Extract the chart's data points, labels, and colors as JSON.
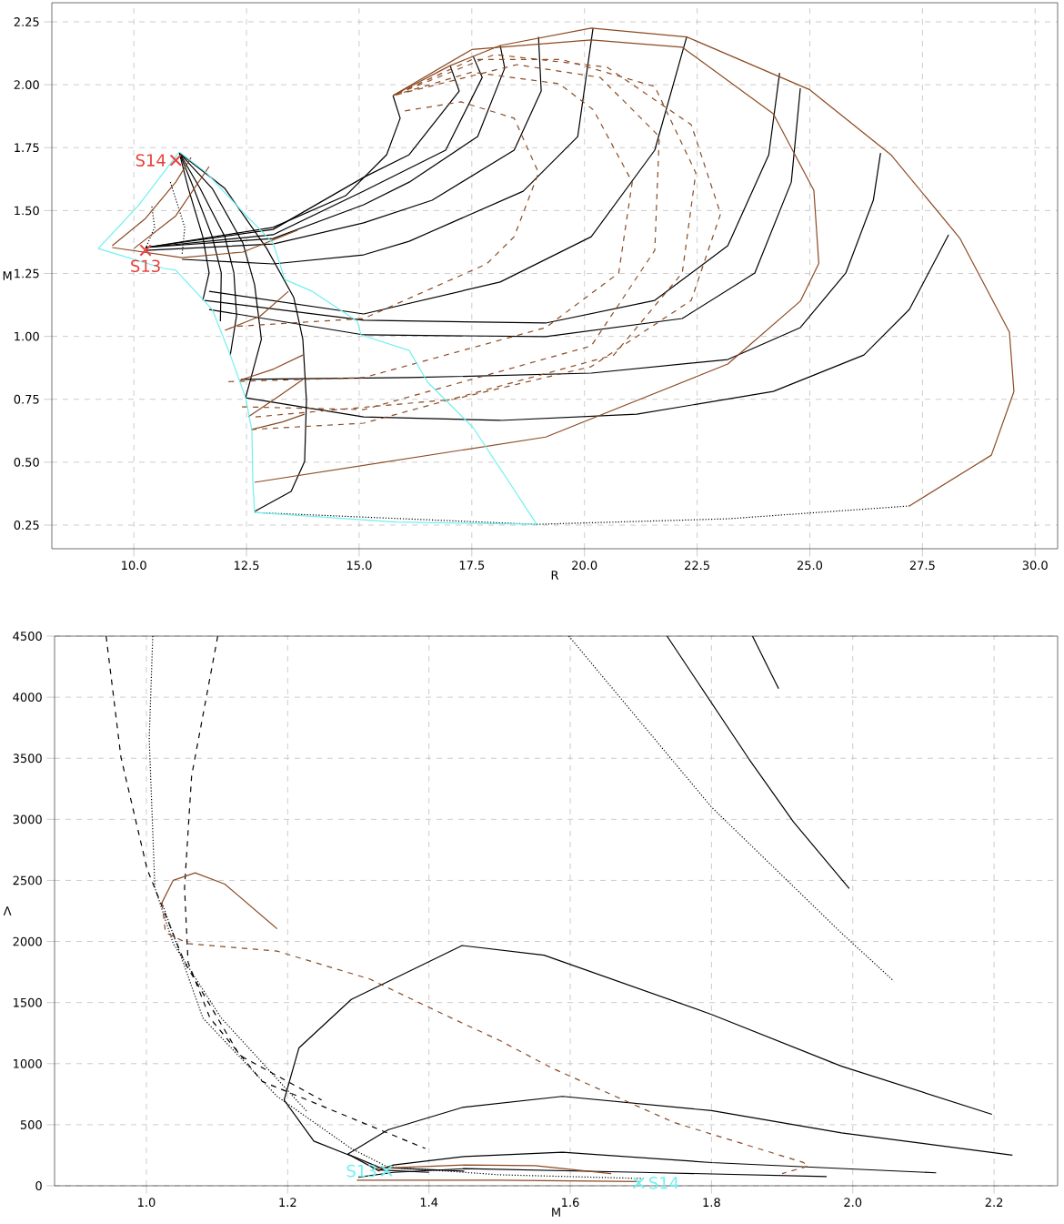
{
  "chart_data": [
    {
      "type": "line",
      "xlabel": "R",
      "ylabel": "M",
      "xlim": [
        8.18,
        30.5
      ],
      "ylim": [
        0.156,
        2.326
      ],
      "grid": true,
      "xticks": [
        {
          "value": 10.0,
          "label": "10.0"
        },
        {
          "value": 12.5,
          "label": "12.5"
        },
        {
          "value": 15.0,
          "label": "15.0"
        },
        {
          "value": 17.5,
          "label": "17.5"
        },
        {
          "value": 20.0,
          "label": "20.0"
        },
        {
          "value": 22.5,
          "label": "22.5"
        },
        {
          "value": 25.0,
          "label": "25.0"
        },
        {
          "value": 27.5,
          "label": "27.5"
        },
        {
          "value": 30.0,
          "label": "30.0"
        }
      ],
      "yticks": [
        {
          "value": 0.25,
          "label": "0.25"
        },
        {
          "value": 0.5,
          "label": "0.50"
        },
        {
          "value": 0.75,
          "label": "0.75"
        },
        {
          "value": 1.0,
          "label": "1.00"
        },
        {
          "value": 1.25,
          "label": "1.25"
        },
        {
          "value": 1.5,
          "label": "1.50"
        },
        {
          "value": 1.75,
          "label": "1.75"
        },
        {
          "value": 2.0,
          "label": "2.00"
        },
        {
          "value": 2.25,
          "label": "2.25"
        }
      ],
      "series": [
        {
          "color": "#000000",
          "line_style": "solid",
          "x": [
            12.48,
            15.1,
            18.13,
            21.16,
            24.19,
            26.2,
            27.21,
            28.08
          ],
          "values": [
            0.756,
            0.68,
            0.666,
            0.691,
            0.781,
            0.926,
            1.107,
            1.404
          ]
        },
        {
          "color": "#000000",
          "line_style": "solid",
          "x": [
            12.38,
            16.11,
            20.15,
            23.18,
            24.79,
            25.8,
            26.41,
            26.57
          ],
          "values": [
            0.829,
            0.836,
            0.854,
            0.908,
            1.035,
            1.252,
            1.541,
            1.729
          ]
        },
        {
          "color": "#000000",
          "line_style": "solid",
          "x": [
            11.67,
            15.1,
            19.14,
            22.17,
            23.78,
            24.59,
            24.79
          ],
          "values": [
            1.107,
            1.006,
            0.999,
            1.071,
            1.252,
            1.613,
            1.986
          ]
        },
        {
          "color": "#000000",
          "line_style": "solid",
          "x": [
            11.57,
            15.1,
            19.14,
            21.56,
            23.18,
            24.09,
            24.33
          ],
          "values": [
            1.143,
            1.064,
            1.053,
            1.143,
            1.36,
            1.722,
            2.047
          ]
        },
        {
          "color": "#000000",
          "line_style": "solid",
          "x": [
            11.67,
            15.1,
            18.13,
            20.15,
            21.56,
            22.27
          ],
          "values": [
            1.179,
            1.089,
            1.216,
            1.396,
            1.74,
            2.192
          ]
        },
        {
          "color": "#000000",
          "line_style": "solid",
          "x": [
            11.07,
            13.09,
            15.1,
            16.11,
            18.64,
            19.85,
            20.19
          ],
          "values": [
            1.306,
            1.288,
            1.324,
            1.378,
            1.577,
            1.794,
            2.225
          ]
        },
        {
          "color": "#000000",
          "line_style": "solid",
          "x": [
            10.26,
            13.09,
            15.1,
            16.62,
            18.44,
            19.04,
            18.98
          ],
          "values": [
            1.342,
            1.367,
            1.451,
            1.541,
            1.74,
            1.975,
            2.19
          ]
        },
        {
          "color": "#000000",
          "line_style": "solid",
          "x": [
            10.26,
            13.09,
            15.1,
            16.11,
            17.63,
            18.23,
            18.13
          ],
          "values": [
            1.353,
            1.389,
            1.523,
            1.613,
            1.794,
            2.066,
            2.156
          ]
        },
        {
          "color": "#000000",
          "line_style": "solid",
          "x": [
            10.26,
            13.09,
            15.1,
            16.92,
            17.73,
            17.53
          ],
          "values": [
            1.353,
            1.404,
            1.577,
            1.74,
            2.029,
            2.113
          ]
        },
        {
          "color": "#000000",
          "line_style": "solid",
          "x": [
            10.26,
            13.09,
            15.1,
            16.11,
            17.22,
            17.02
          ],
          "values": [
            1.353,
            1.425,
            1.632,
            1.722,
            1.975,
            2.076
          ]
        },
        {
          "color": "#000000",
          "line_style": "solid",
          "x": [
            10.26,
            13.09,
            14.7,
            15.61,
            15.91,
            15.75
          ],
          "values": [
            1.353,
            1.433,
            1.559,
            1.722,
            1.867,
            1.957
          ]
        },
        {
          "color": "#000000",
          "line_style": "solid",
          "x": [
            11.01,
            12.02,
            12.95,
            13.55,
            13.75,
            13.83,
            13.79,
            13.49,
            12.68
          ],
          "values": [
            1.729,
            1.588,
            1.349,
            1.154,
            0.988,
            0.745,
            0.503,
            0.384,
            0.304
          ]
        },
        {
          "color": "#000000",
          "line_style": "solid",
          "x": [
            11.01,
            11.74,
            12.42,
            12.68,
            12.83,
            12.48
          ],
          "values": [
            1.729,
            1.588,
            1.371,
            1.205,
            0.988,
            0.756
          ]
        },
        {
          "color": "#000000",
          "line_style": "solid",
          "x": [
            11.01,
            11.47,
            12.02,
            12.22,
            12.28,
            12.14
          ],
          "values": [
            1.729,
            1.588,
            1.396,
            1.252,
            1.082,
            0.926
          ]
        },
        {
          "color": "#000000",
          "line_style": "solid",
          "x": [
            11.01,
            11.33,
            11.74,
            11.94,
            11.92
          ],
          "values": [
            1.729,
            1.588,
            1.396,
            1.252,
            1.06
          ]
        },
        {
          "color": "#000000",
          "line_style": "solid",
          "x": [
            11.01,
            11.21,
            11.53,
            11.67,
            11.53
          ],
          "values": [
            1.729,
            1.588,
            1.396,
            1.252,
            1.143
          ]
        },
        {
          "color": "#000000",
          "line_style": "dotted",
          "x": [
            10.81,
            11.13,
            11.07
          ],
          "values": [
            1.613,
            1.433,
            1.324
          ]
        },
        {
          "color": "#000000",
          "line_style": "dotted",
          "x": [
            10.4,
            10.46,
            10.26
          ],
          "values": [
            1.516,
            1.433,
            1.349
          ]
        },
        {
          "color": "#000000",
          "line_style": "dotted",
          "x": [
            12.68,
            18.94,
            23.18,
            27.21
          ],
          "values": [
            0.3,
            0.253,
            0.275,
            0.326
          ]
        },
        {
          "color": "#8c4a22",
          "line_style": "solid",
          "x": [
            27.21,
            29.03,
            29.53,
            29.43,
            28.33,
            26.81,
            25.0,
            22.27,
            20.15,
            18.13,
            17.02,
            15.75
          ],
          "values": [
            0.326,
            0.528,
            0.781,
            1.017,
            1.39,
            1.72,
            1.98,
            2.19,
            2.225,
            2.156,
            2.076,
            1.957
          ]
        },
        {
          "color": "#8c4a22",
          "line_style": "solid",
          "x": [
            12.68,
            19.14,
            23.18,
            24.79,
            25.2,
            25.09,
            24.19,
            22.17,
            20.15,
            17.5,
            15.75
          ],
          "values": [
            0.42,
            0.6,
            0.89,
            1.14,
            1.29,
            1.58,
            1.885,
            2.149,
            2.178,
            2.14,
            1.957
          ]
        },
        {
          "color": "#8c4a22",
          "line_style": "dashed",
          "x": [
            12.3,
            15.1,
            17.83,
            18.44,
            18.98,
            18.44,
            17.26,
            16.01
          ],
          "values": [
            1.04,
            1.071,
            1.288,
            1.396,
            1.65,
            1.867,
            1.932,
            1.896
          ]
        },
        {
          "color": "#8c4a22",
          "line_style": "dashed",
          "x": [
            12.1,
            15.1,
            19.14,
            20.76,
            21.06,
            20.2,
            19.44,
            17.5,
            15.75
          ],
          "values": [
            0.82,
            0.836,
            1.035,
            1.252,
            1.613,
            1.9,
            2.004,
            2.05,
            1.957
          ]
        },
        {
          "color": "#8c4a22",
          "line_style": "dashed",
          "x": [
            12.4,
            15.1,
            20.15,
            21.56,
            21.66,
            20.35,
            18.5,
            15.75
          ],
          "values": [
            0.72,
            0.709,
            0.962,
            1.342,
            1.794,
            2.029,
            2.08,
            1.957
          ]
        },
        {
          "color": "#8c4a22",
          "line_style": "dashed",
          "x": [
            12.6,
            15.1,
            20.65,
            22.17,
            22.47,
            21.56,
            19.5,
            17.5,
            15.75
          ],
          "values": [
            0.63,
            0.655,
            0.926,
            1.252,
            1.65,
            1.993,
            2.1,
            2.1,
            1.957
          ]
        },
        {
          "color": "#8c4a22",
          "line_style": "dashed",
          "x": [
            12.7,
            17.1,
            20.15,
            22.37,
            23.02,
            22.37,
            20.5,
            18.0,
            15.75
          ],
          "values": [
            0.68,
            0.75,
            0.88,
            1.143,
            1.487,
            1.841,
            2.07,
            2.12,
            1.957
          ]
        },
        {
          "color": "#8c4a22",
          "line_style": "solid",
          "x": [
            12.02,
            12.8,
            13.43
          ],
          "values": [
            1.024,
            1.08,
            1.179
          ]
        },
        {
          "color": "#8c4a22",
          "line_style": "solid",
          "x": [
            12.34,
            13.1,
            13.75
          ],
          "values": [
            0.825,
            0.87,
            0.926
          ]
        },
        {
          "color": "#8c4a22",
          "line_style": "solid",
          "x": [
            12.54,
            13.2,
            13.75
          ],
          "values": [
            0.68,
            0.76,
            0.829
          ]
        },
        {
          "color": "#8c4a22",
          "line_style": "solid",
          "x": [
            12.62,
            13.3,
            13.79
          ],
          "values": [
            0.63,
            0.66,
            0.691
          ]
        },
        {
          "color": "#8c4a22",
          "line_style": "solid",
          "x": [
            9.52,
            11.07,
            12.42,
            13.63
          ],
          "values": [
            1.353,
            1.313,
            1.335,
            1.422
          ]
        },
        {
          "color": "#8c4a22",
          "line_style": "solid",
          "x": [
            9.52,
            10.26,
            10.93,
            11.27
          ],
          "values": [
            1.36,
            1.469,
            1.613,
            1.711
          ]
        },
        {
          "color": "#8c4a22",
          "line_style": "solid",
          "x": [
            10.0,
            10.93,
            11.67
          ],
          "values": [
            1.349,
            1.479,
            1.675
          ]
        },
        {
          "color": "#70f0f0",
          "line_style": "solid",
          "x": [
            9.21,
            10.1,
            11.01
          ],
          "values": [
            1.349,
            1.52,
            1.733
          ]
        },
        {
          "color": "#70f0f0",
          "line_style": "solid",
          "x": [
            11.01,
            11.61,
            12.42,
            13.09,
            13.35,
            13.96,
            14.96,
            15.04,
            16.11,
            16.52,
            17.53,
            18.33,
            18.94
          ],
          "values": [
            1.733,
            1.65,
            1.494,
            1.371,
            1.226,
            1.179,
            1.06,
            1.006,
            0.944,
            0.818,
            0.637,
            0.42,
            0.253
          ]
        },
        {
          "color": "#70f0f0",
          "line_style": "solid",
          "x": [
            12.68,
            15.8,
            18.94
          ],
          "values": [
            0.3,
            0.262,
            0.253
          ]
        },
        {
          "color": "#70f0f0",
          "line_style": "solid",
          "x": [
            9.21,
            10.67,
            10.93,
            11.74,
            12.14,
            12.48,
            12.62,
            12.64,
            12.68
          ],
          "values": [
            1.349,
            1.27,
            1.263,
            1.107,
            0.926,
            0.756,
            0.626,
            0.42,
            0.3
          ]
        },
        {
          "type": "scatter",
          "name": "S13",
          "marker": "cross",
          "color": "#e8413c",
          "x": [
            10.26
          ],
          "values": [
            1.342
          ]
        },
        {
          "type": "scatter",
          "name": "S14",
          "marker": "cross",
          "color": "#e8413c",
          "x": [
            10.93
          ],
          "values": [
            1.7
          ]
        }
      ]
    },
    {
      "type": "line",
      "xlabel": "M",
      "ylabel": "Λ",
      "xlim": [
        0.87,
        2.29
      ],
      "ylim": [
        0,
        4500
      ],
      "grid": true,
      "xticks": [
        {
          "value": 1.0,
          "label": "1.0"
        },
        {
          "value": 1.2,
          "label": "1.2"
        },
        {
          "value": 1.4,
          "label": "1.4"
        },
        {
          "value": 1.6,
          "label": "1.6"
        },
        {
          "value": 1.8,
          "label": "1.8"
        },
        {
          "value": 2.0,
          "label": "2.0"
        },
        {
          "value": 2.2,
          "label": "2.2"
        }
      ],
      "yticks": [
        0,
        500,
        1000,
        1500,
        2000,
        2500,
        3000,
        3500,
        4000,
        4500
      ],
      "series": [
        {
          "color": "#000000",
          "line_style": "dashed",
          "x": [
            0.943,
            0.964,
            1.001,
            1.054,
            1.132,
            1.248
          ],
          "values": [
            4500,
            3508,
            2593,
            1830,
            1068,
            702
          ]
        },
        {
          "color": "#000000",
          "line_style": "dotted",
          "x": [
            1.009,
            1.004,
            1.012,
            1.038,
            1.106,
            1.227
          ],
          "values": [
            4500,
            3660,
            2440,
            1983,
            1373,
            610
          ]
        },
        {
          "color": "#000000",
          "line_style": "dashed",
          "x": [
            1.101,
            1.064,
            1.054,
            1.059,
            1.09,
            1.164,
            1.395
          ],
          "values": [
            4500,
            3355,
            2440,
            1830,
            1373,
            854,
            305
          ]
        },
        {
          "color": "#000000",
          "line_style": "dotted",
          "x": [
            1.022,
            1.08,
            1.185,
            1.29,
            1.342,
            1.5,
            1.7
          ],
          "values": [
            2318,
            1373,
            732,
            305,
            153,
            90,
            60
          ]
        },
        {
          "color": "#000000",
          "line_style": "solid",
          "x": [
            2.197,
            1.984,
            1.8,
            1.563,
            1.447,
            1.29,
            1.216,
            1.195,
            1.237,
            1.29,
            1.33
          ],
          "values": [
            585,
            979,
            1403,
            1888,
            1967,
            1525,
            1129,
            702,
            366,
            244,
            120
          ]
        },
        {
          "color": "#000000",
          "line_style": "solid",
          "x": [
            2.226,
            1.984,
            1.8,
            1.589,
            1.447,
            1.342,
            1.285,
            1.33,
            1.45
          ],
          "values": [
            251,
            433,
            615,
            732,
            641,
            458,
            259,
            150,
            120
          ]
        },
        {
          "color": "#000000",
          "line_style": "solid",
          "x": [
            2.118,
            1.8,
            1.589,
            1.45,
            1.35,
            1.33,
            1.4
          ],
          "values": [
            106,
            190,
            275,
            240,
            170,
            130,
            110
          ]
        },
        {
          "color": "#000000",
          "line_style": "solid",
          "x": [
            1.963,
            1.7,
            1.45,
            1.35,
            1.3
          ],
          "values": [
            76,
            110,
            140,
            110,
            70
          ]
        },
        {
          "color": "#000000",
          "line_style": "dotted",
          "x": [
            1.598,
            1.8,
            1.984,
            2.058
          ],
          "values": [
            4500,
            3100,
            2069,
            1676
          ]
        },
        {
          "color": "#000000",
          "line_style": "solid",
          "x": [
            1.737,
            1.853,
            1.916,
            1.995
          ],
          "values": [
            4500,
            3494,
            2979,
            2433
          ]
        },
        {
          "color": "#000000",
          "line_style": "solid",
          "x": [
            1.858,
            1.895
          ],
          "values": [
            4500,
            4069
          ]
        },
        {
          "color": "#8c4a22",
          "line_style": "solid",
          "x": [
            1.022,
            1.038,
            1.069,
            1.111,
            1.185
          ],
          "values": [
            2318,
            2501,
            2562,
            2470,
            2104
          ]
        },
        {
          "color": "#8c4a22",
          "line_style": "dashed",
          "x": [
            1.022,
            1.027,
            1.059,
            1.185,
            1.316,
            1.421,
            1.5,
            1.574,
            1.747,
            1.93,
            1.937,
            1.9
          ],
          "values": [
            2318,
            2074,
            1983,
            1921,
            1693,
            1403,
            1190,
            964,
            518,
            191,
            161,
            100
          ]
        },
        {
          "color": "#8c4a22",
          "line_style": "solid",
          "x": [
            1.298,
            1.5,
            1.7
          ],
          "values": [
            46,
            45,
            35
          ]
        },
        {
          "color": "#8c4a22",
          "line_style": "solid",
          "x": [
            1.32,
            1.45,
            1.55,
            1.658
          ],
          "values": [
            140,
            170,
            165,
            100
          ]
        },
        {
          "type": "scatter",
          "name": "S13",
          "marker": "cross",
          "color": "#70f0f0",
          "x": [
            1.34
          ],
          "values": [
            122
          ]
        },
        {
          "type": "scatter",
          "name": "S14",
          "marker": "cross",
          "color": "#70f0f0",
          "x": [
            1.697
          ],
          "values": [
            24
          ]
        }
      ]
    }
  ]
}
